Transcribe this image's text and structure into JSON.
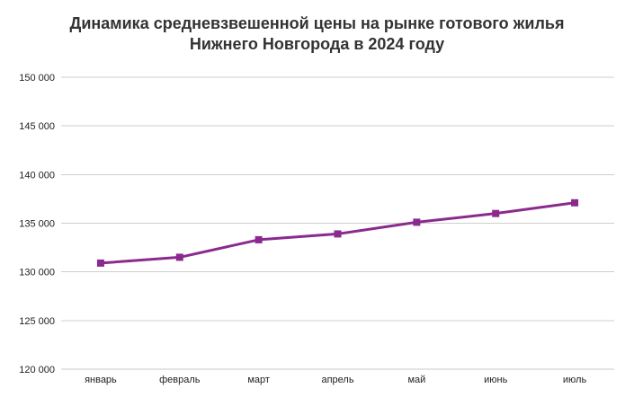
{
  "chart_data": {
    "type": "line",
    "title_lines": [
      "Динамика средневзвешенной цены на рынке готового жилья",
      "Нижнего Новгорода в 2024 году"
    ],
    "categories": [
      "январь",
      "февраль",
      "март",
      "апрель",
      "май",
      "июнь",
      "июль"
    ],
    "series": [
      {
        "values": [
          130900,
          131500,
          133300,
          133900,
          135100,
          136000,
          137100
        ]
      }
    ],
    "ylim": [
      120000,
      150000
    ],
    "ytick_values": [
      120000,
      125000,
      130000,
      135000,
      140000,
      145000,
      150000
    ],
    "ytick_labels": [
      "120 000",
      "125 000",
      "130 000",
      "135 000",
      "140 000",
      "145 000",
      "150 000"
    ],
    "grid": true,
    "legend": "none",
    "colors": {
      "series": "#8B2A8E",
      "grid": "#cfcfcf",
      "axis": "#c8c8c8"
    },
    "marker": "square"
  }
}
